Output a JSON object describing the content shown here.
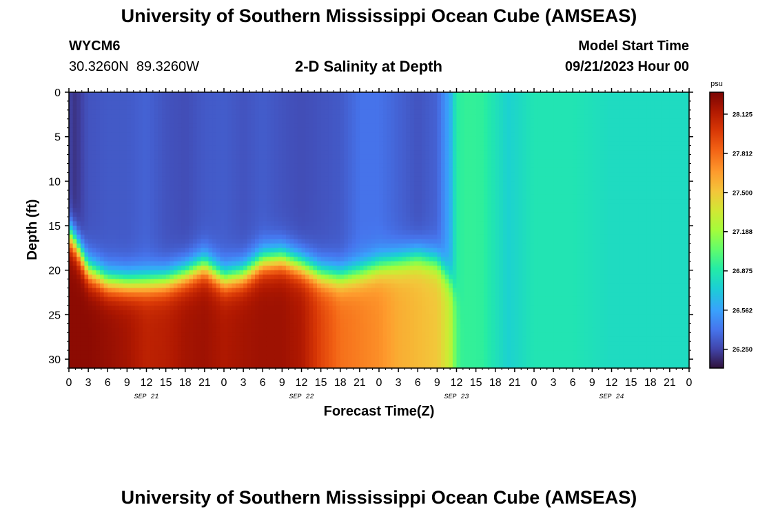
{
  "header": {
    "title": "University of Southern Mississippi Ocean Cube (AMSEAS)",
    "station_id": "WYCM6",
    "coordinates": "30.3260N  89.3260W",
    "chart_title": "2-D Salinity at Depth",
    "model_start_label": "Model Start Time",
    "model_start_value": "09/21/2023 Hour 00"
  },
  "footer": {
    "title_repeat": "University of Southern Mississippi Ocean Cube (AMSEAS)"
  },
  "chart_data": {
    "type": "heatmap",
    "title": "2-D Salinity at Depth",
    "xlabel": "Forecast Time(Z)",
    "ylabel": "Depth (ft)",
    "x_range_hours": [
      0,
      96
    ],
    "y_range_ft": [
      0,
      31
    ],
    "y_ticks": [
      0,
      5,
      10,
      15,
      20,
      25,
      30
    ],
    "x_tick_labels": [
      "0",
      "3",
      "6",
      "9",
      "12",
      "15",
      "18",
      "21",
      "0",
      "3",
      "6",
      "9",
      "12",
      "15",
      "18",
      "21",
      "0",
      "3",
      "6",
      "9",
      "12",
      "15",
      "18",
      "21",
      "0",
      "3",
      "6",
      "9",
      "12",
      "15",
      "18",
      "21",
      "0"
    ],
    "day_labels": [
      {
        "label": "SEP 21",
        "hour": 12
      },
      {
        "label": "SEP 22",
        "hour": 36
      },
      {
        "label": "SEP 23",
        "hour": 60
      },
      {
        "label": "SEP 24",
        "hour": 84
      }
    ],
    "colorbar": {
      "unit": "psu",
      "min": 26.1,
      "max": 28.3,
      "ticks": [
        "28.125",
        "27.812",
        "27.500",
        "27.188",
        "26.875",
        "26.562",
        "26.250"
      ]
    },
    "hours": [
      0,
      1,
      3,
      6,
      9,
      12,
      15,
      18,
      21,
      24,
      27,
      30,
      33,
      36,
      39,
      42,
      45,
      48,
      51,
      54,
      57,
      59,
      60,
      61,
      61.5,
      62,
      64,
      68,
      72,
      78,
      84,
      90,
      96
    ],
    "halocline_depth_ft": [
      16,
      17,
      20,
      21.3,
      21.5,
      21.4,
      21.2,
      20.5,
      19.5,
      21,
      20.5,
      19,
      18.7,
      19.5,
      20.5,
      20.8,
      20.3,
      19.5,
      19,
      18.5,
      19,
      21,
      23,
      24,
      30,
      31,
      31,
      31,
      31,
      31,
      31,
      31,
      31
    ],
    "surface_salinity_psu": [
      26.25,
      26.2,
      26.3,
      26.32,
      26.32,
      26.35,
      26.3,
      26.28,
      26.32,
      26.33,
      26.3,
      26.33,
      26.3,
      26.28,
      26.3,
      26.32,
      26.4,
      26.4,
      26.35,
      26.3,
      26.35,
      26.6,
      26.9,
      26.92,
      26.93,
      26.93,
      26.92,
      26.75,
      26.85,
      26.85,
      26.8,
      26.8,
      26.8
    ],
    "bottom_salinity_psu": [
      28.25,
      28.25,
      28.25,
      28.22,
      28.18,
      28.1,
      28.12,
      28.18,
      28.2,
      28.15,
      28.18,
      28.2,
      28.2,
      28.15,
      27.95,
      27.8,
      27.75,
      27.7,
      27.6,
      27.55,
      27.5,
      27.3,
      27.0,
      26.93,
      26.93,
      26.93,
      26.92,
      26.75,
      26.85,
      26.85,
      26.8,
      26.8,
      26.8
    ]
  }
}
